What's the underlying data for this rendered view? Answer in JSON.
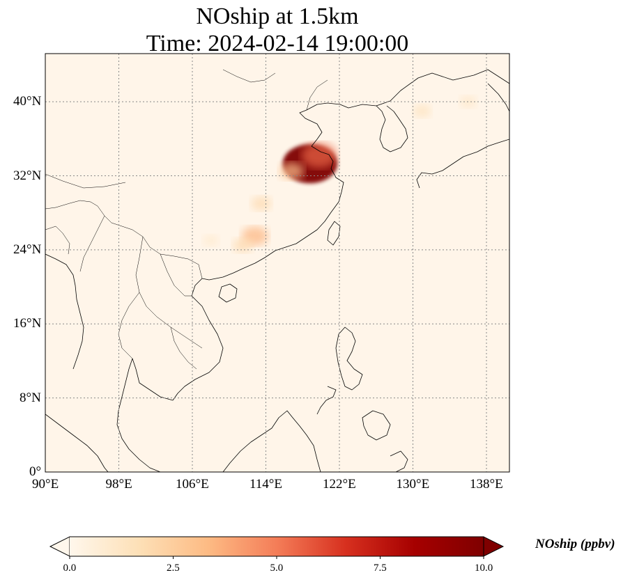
{
  "title": {
    "line1": "NOship at 1.5km",
    "line2": "Time: 2024-02-14 19:00:00"
  },
  "map": {
    "lon_range": [
      90,
      140.5
    ],
    "lat_range": [
      0,
      45.2
    ],
    "lon_ticks": [
      {
        "value": 90,
        "label": "90°E"
      },
      {
        "value": 98,
        "label": "98°E"
      },
      {
        "value": 106,
        "label": "106°E"
      },
      {
        "value": 114,
        "label": "114°E"
      },
      {
        "value": 122,
        "label": "122°E"
      },
      {
        "value": 130,
        "label": "130°E"
      },
      {
        "value": 138,
        "label": "138°E"
      }
    ],
    "lat_ticks": [
      {
        "value": 0,
        "label": "0°"
      },
      {
        "value": 8,
        "label": "8°N"
      },
      {
        "value": 16,
        "label": "16°N"
      },
      {
        "value": 24,
        "label": "24°N"
      },
      {
        "value": 32,
        "label": "32°N"
      },
      {
        "value": 40,
        "label": "40°N"
      }
    ],
    "gridlines": true,
    "background_color": "#fff5e9"
  },
  "colorbar": {
    "label": "NOship (ppbv)",
    "colormap": "OrRd",
    "range": [
      0,
      10
    ],
    "extend": "both",
    "ticks": [
      {
        "value": 0,
        "label": "0.0"
      },
      {
        "value": 2.5,
        "label": "2.5"
      },
      {
        "value": 5,
        "label": "5.0"
      },
      {
        "value": 7.5,
        "label": "7.5"
      },
      {
        "value": 10,
        "label": "10.0"
      }
    ],
    "colors": [
      "#fff7ec",
      "#fde0b7",
      "#fdbb84",
      "#f47d58",
      "#d7301f",
      "#a60000",
      "#7f0000"
    ]
  },
  "field_hotspots": [
    {
      "lon": 118.8,
      "lat": 33.3,
      "value": 10.0,
      "note": "peak"
    },
    {
      "lon": 119.8,
      "lat": 34.2,
      "value": 5.5
    },
    {
      "lon": 116.8,
      "lat": 32.5,
      "value": 3.0
    },
    {
      "lon": 113.5,
      "lat": 29.0,
      "value": 2.0
    },
    {
      "lon": 112.8,
      "lat": 25.5,
      "value": 3.5
    },
    {
      "lon": 111.5,
      "lat": 24.5,
      "value": 2.0
    },
    {
      "lon": 108.0,
      "lat": 25.0,
      "value": 1.0
    },
    {
      "lon": 131.0,
      "lat": 39.0,
      "value": 1.5
    },
    {
      "lon": 136.0,
      "lat": 40.0,
      "value": 1.2
    }
  ]
}
